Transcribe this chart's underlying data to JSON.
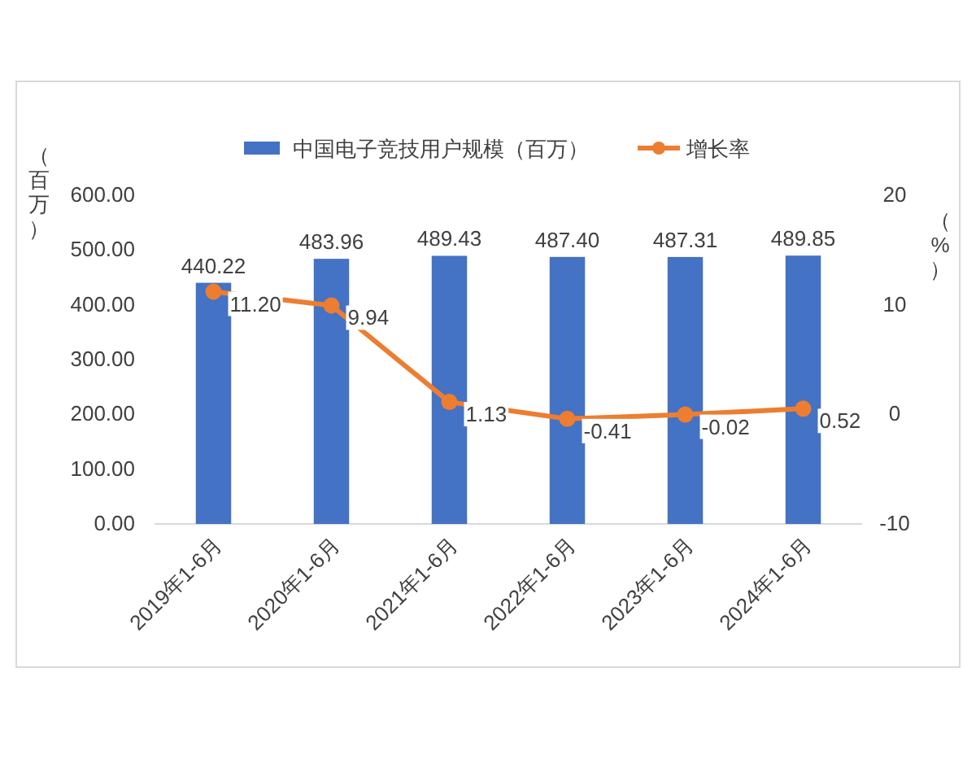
{
  "chart_data": {
    "type": "bar",
    "categories": [
      "2019年1-6月",
      "2020年1-6月",
      "2021年1-6月",
      "2022年1-6月",
      "2023年1-6月",
      "2024年1-6月"
    ],
    "ylabel": "（百万）",
    "y2label": "（%）",
    "ylim": [
      0,
      600
    ],
    "yticks": [
      {
        "value": 0,
        "label": "0.00"
      },
      {
        "value": 100,
        "label": "100.00"
      },
      {
        "value": 200,
        "label": "200.00"
      },
      {
        "value": 300,
        "label": "300.00"
      },
      {
        "value": 400,
        "label": "400.00"
      },
      {
        "value": 500,
        "label": "500.00"
      },
      {
        "value": 600,
        "label": "600.00"
      }
    ],
    "y2lim": [
      -10,
      20
    ],
    "y2ticks": [
      -10,
      0,
      10,
      20
    ],
    "legend": "top",
    "grid": false,
    "series": [
      {
        "name": "中国电子竞技用户规模（百万）",
        "color": "#4472c4",
        "values": [
          440.22,
          483.96,
          489.43,
          487.4,
          487.31,
          489.85
        ],
        "value_labels": [
          "440.22",
          "483.96",
          "489.43",
          "487.40",
          "487.31",
          "489.85"
        ]
      },
      {
        "name": "增长率",
        "type": "line",
        "axis": "y2",
        "color": "#ed7d31",
        "marker": "circle",
        "values": [
          11.2,
          9.94,
          1.13,
          -0.41,
          -0.02,
          0.52
        ],
        "value_labels": [
          "11.20",
          "9.94",
          "1.13",
          "-0.41",
          "-0.02",
          "0.52"
        ]
      }
    ]
  }
}
